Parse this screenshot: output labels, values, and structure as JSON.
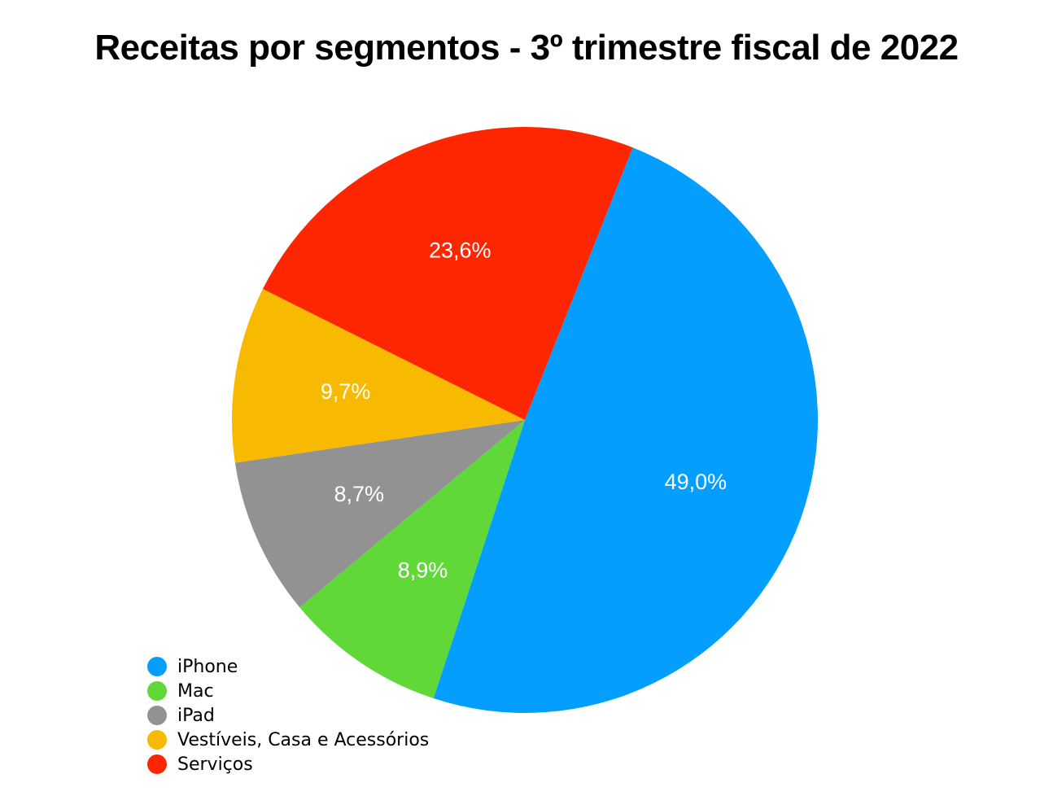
{
  "chart_data": {
    "type": "pie",
    "title": "Receitas por segmentos - 3º trimestre fiscal de 2022",
    "categories": [
      "iPhone",
      "Mac",
      "iPad",
      "Vestíveis, Casa e Acessórios",
      "Serviços"
    ],
    "values": [
      49.0,
      8.9,
      8.7,
      9.7,
      23.6
    ],
    "data_labels": [
      "49,0%",
      "8,9%",
      "8,7%",
      "9,7%",
      "23,6%"
    ],
    "colors": [
      "#049ffe",
      "#5fd838",
      "#929292",
      "#f8ba00",
      "#fe2600"
    ],
    "legend_position": "bottom-left",
    "start_angle_note": "clockwise"
  }
}
